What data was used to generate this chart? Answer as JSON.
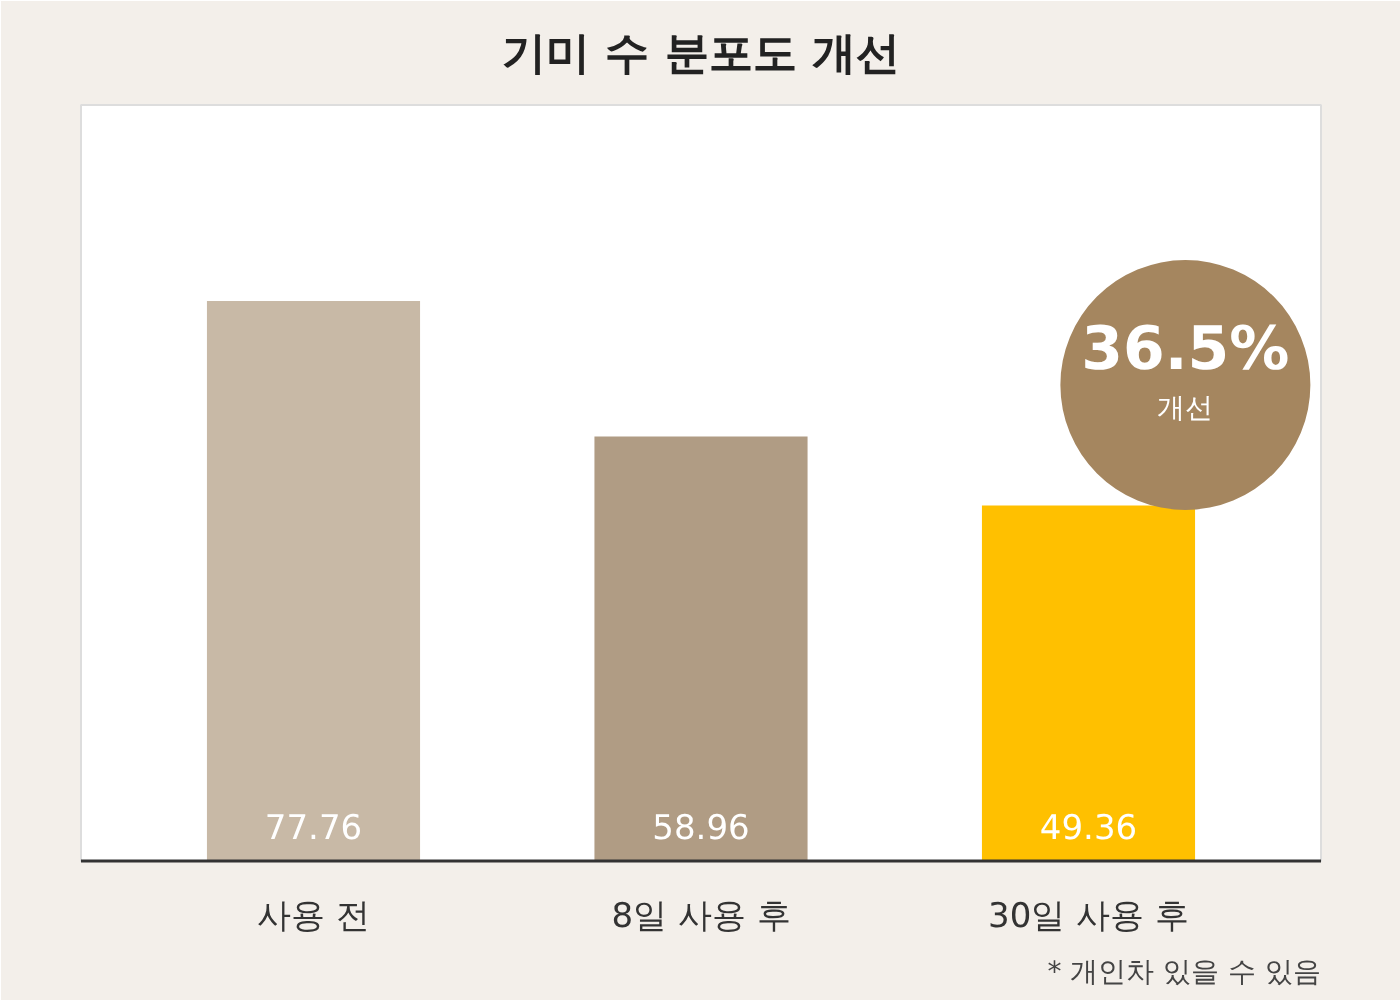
{
  "chart_data": {
    "type": "bar",
    "title": "기미 수 분포도 개선",
    "categories": [
      "사용 전",
      "8일 사용 후",
      "30일 사용 후"
    ],
    "values": [
      77.76,
      58.96,
      49.36
    ],
    "colors": [
      "#c8b9a6",
      "#b09c84",
      "#ffc000"
    ],
    "data_labels": true,
    "grid": false,
    "annotations": [
      "36.5%",
      "개선",
      "* 개인차 있을 수 있음"
    ]
  }
}
